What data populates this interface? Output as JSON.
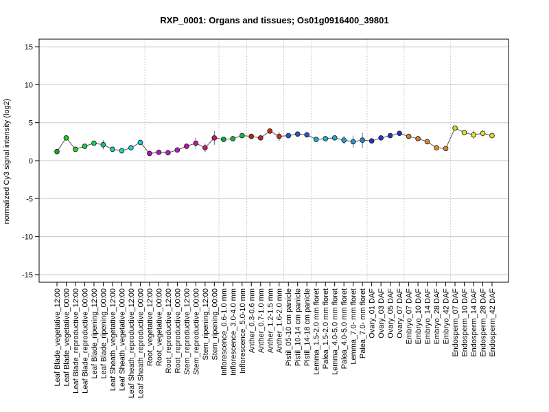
{
  "chart_data": {
    "type": "line",
    "title": "RXP_0001: Organs and tissues; Os01g0916400_39801",
    "xlabel": "",
    "ylabel": "normalized Cy3 signal intensity (log2)",
    "ylim": [
      -16,
      16
    ],
    "yticks": [
      -15,
      -10,
      -5,
      0,
      5,
      10,
      15
    ],
    "grid": true,
    "categories": [
      "Leaf Blade_vegetative_12:00",
      "Leaf Blade_vegetative_00:00",
      "Leaf Blade_reproductive_12:00",
      "Leaf Blade_reproductive_00:00",
      "Leaf Blade_ripening_12:00",
      "Leaf Blade_ripening_00:00",
      "Leaf Sheath_vegetative_12:00",
      "Leaf Sheath_vegetative_00:00",
      "Leaf Sheath_reproductive_12:00",
      "Leaf Sheath_reproductive_00:00",
      "Root_vegetative_12:00",
      "Root_vegetative_00:00",
      "Root_reproductive_12:00",
      "Root_reproductive_00:00",
      "Stem_reproductive_12:00",
      "Stem_reproductive_00:00",
      "Stem_ripening_12:00",
      "Stem_ripening_00:00",
      "Inflorescence_0.6-1.0 mm",
      "Inflorescence_3.0-4.0 mm",
      "Inflorescence_5.0-10 mm",
      "Anther_0.3-0.6 mm",
      "Anther_0.7-1.0 mm",
      "Anther_1.2-1.5 mm",
      "Anther_1.6-2.0 mm",
      "Pistil_05-10 cm panicle",
      "Pistil_10-14 cm panicle",
      "Pistil_14-18 cm panicle",
      "Lemma_1.5-2.0 mm floret",
      "Palea_1.5-2.0 mm floret",
      "Lemma_4.0-5.0 mm floret",
      "Palea_4.0-5.0 mm floret",
      "Lemma_7.0- mm floret",
      "Palea_7.0- mm floret",
      "Ovary_01 DAF",
      "Ovary_03 DAF",
      "Ovary_05 DAF",
      "Ovary_07 DAF",
      "Embryo_07 DAF",
      "Embryo_10 DAF",
      "Embryo_14 DAF",
      "Embryo_28 DAF",
      "Embryo_42 DAF",
      "Endosperm_07 DAF",
      "Endosperm_10 DAF",
      "Endosperm_14 DAF",
      "Endosperm_28 DAF",
      "Endosperm_42 DAF"
    ],
    "values": [
      1.2,
      3.0,
      1.5,
      1.9,
      2.3,
      2.1,
      1.5,
      1.3,
      1.7,
      2.4,
      0.95,
      1.1,
      1.05,
      1.4,
      1.9,
      2.3,
      1.7,
      3.0,
      2.8,
      2.9,
      3.3,
      3.2,
      3.0,
      3.9,
      3.2,
      3.3,
      3.5,
      3.4,
      2.8,
      2.9,
      3.0,
      2.7,
      2.5,
      2.7,
      2.6,
      3.0,
      3.3,
      3.6,
      3.2,
      2.9,
      2.5,
      1.7,
      1.6,
      4.3,
      3.7,
      3.4,
      3.6,
      3.3
    ],
    "errors": [
      0.3,
      0.35,
      0.3,
      0.25,
      0.35,
      0.6,
      0.2,
      0.25,
      0.4,
      0.35,
      0.3,
      0.2,
      0.2,
      0.25,
      0.35,
      0.7,
      0.55,
      0.9,
      0.25,
      0.2,
      0.3,
      0.3,
      0.25,
      0.3,
      0.6,
      0.3,
      0.3,
      0.25,
      0.3,
      0.25,
      0.3,
      0.55,
      0.8,
      1.0,
      0.2,
      0.25,
      0.2,
      0.3,
      0.25,
      0.2,
      0.2,
      0.3,
      0.25,
      0.3,
      0.35,
      0.55,
      0.4,
      0.3
    ],
    "colors": [
      "#1aa821",
      "#1bcf1b",
      "#22d92a",
      "#13d24b",
      "#15d25a",
      "#17c66f",
      "#1ad7a6",
      "#16dcb6",
      "#15d6c5",
      "#16cdcf",
      "#b10fb8",
      "#b40fc0",
      "#b61cc4",
      "#b21bc8",
      "#c1119c",
      "#c3188a",
      "#cc1577",
      "#cf1463",
      "#14a83c",
      "#16b238",
      "#18b441",
      "#c0231c",
      "#c7241a",
      "#cf2a17",
      "#cf2f1c",
      "#1d5fd1",
      "#1c56d4",
      "#2354d6",
      "#1aaad4",
      "#1bb0d0",
      "#1eaad6",
      "#1ba6d2",
      "#1a9cd3",
      "#1a8fd7",
      "#1c2fd2",
      "#1c38d6",
      "#1f36cc",
      "#1d2fd1",
      "#d97c2d",
      "#d67c2b",
      "#de8a2a",
      "#df8a27",
      "#e0852c",
      "#d8d81f",
      "#e0e12c",
      "#e3e12b",
      "#e4e12b",
      "#e2e22a"
    ],
    "separators_after": [
      9,
      17,
      20,
      24,
      27,
      33,
      37,
      42
    ]
  }
}
